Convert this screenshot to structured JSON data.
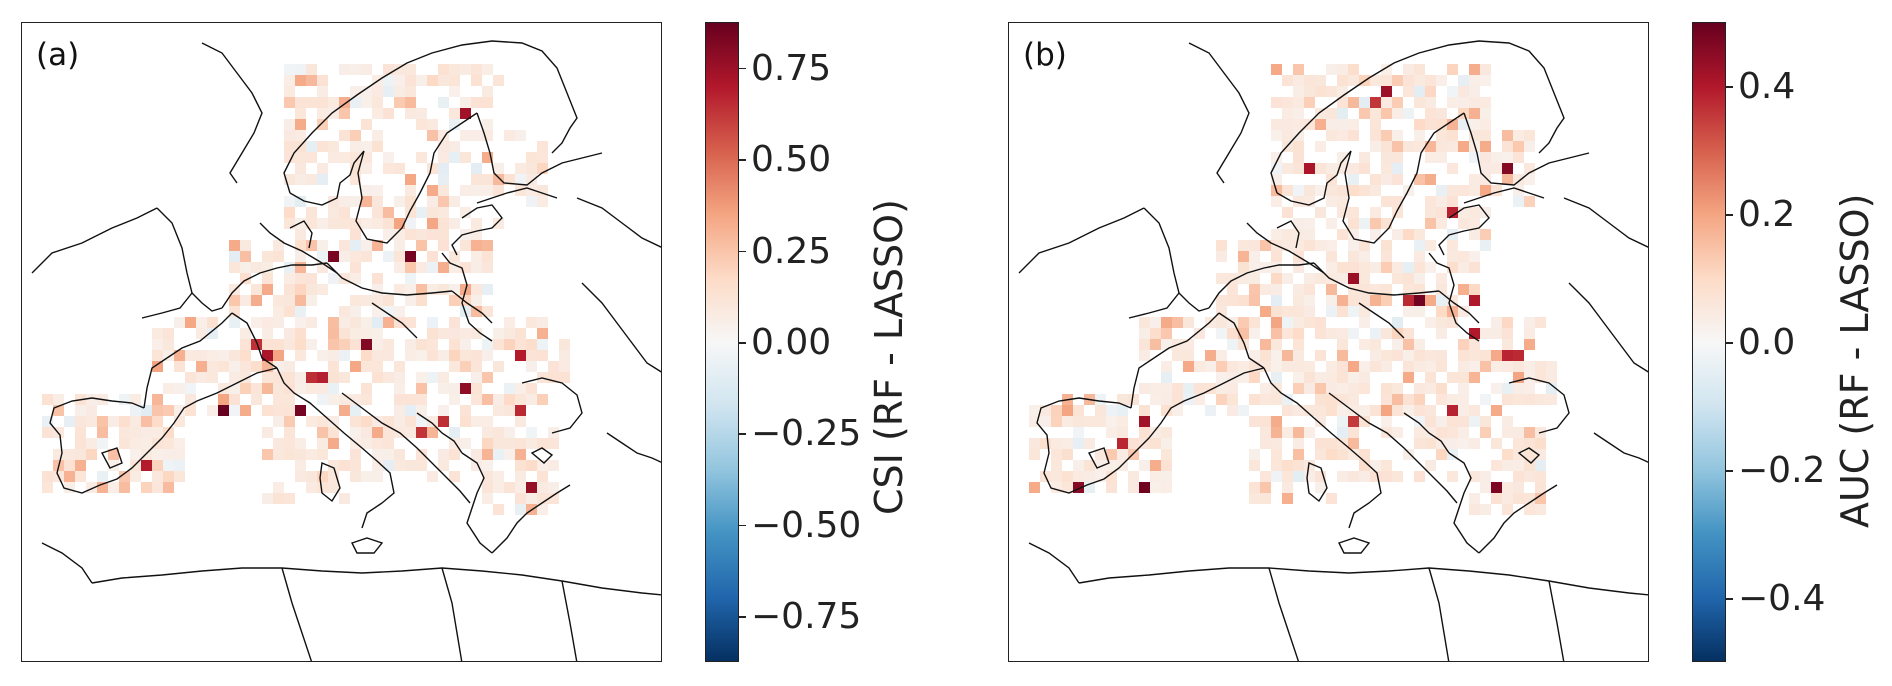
{
  "panels": [
    {
      "label": "(a)",
      "colorbar": {
        "title": "CSI (RF - LASSO)",
        "range": [
          -0.875,
          0.875
        ],
        "ticks": [
          "−0.75",
          "−0.50",
          "−0.25",
          "0.00",
          "0.25",
          "0.50",
          "0.75"
        ],
        "tick_values": [
          -0.75,
          -0.5,
          -0.25,
          0.0,
          0.25,
          0.5,
          0.75
        ],
        "colormap": [
          "#053061",
          "#2166ac",
          "#4393c3",
          "#92c5de",
          "#d1e5f0",
          "#f7f7f7",
          "#fddbc7",
          "#f4a582",
          "#d6604d",
          "#b2182b",
          "#67001f"
        ]
      }
    },
    {
      "label": "(b)",
      "colorbar": {
        "title": "AUC (RF - LASSO)",
        "range": [
          -0.5,
          0.5
        ],
        "ticks": [
          "−0.4",
          "−0.2",
          "0.0",
          "0.2",
          "0.4"
        ],
        "tick_values": [
          -0.4,
          -0.2,
          0.0,
          0.2,
          0.4
        ],
        "colormap": [
          "#053061",
          "#2166ac",
          "#4393c3",
          "#92c5de",
          "#d1e5f0",
          "#f7f7f7",
          "#fddbc7",
          "#f4a582",
          "#d6604d",
          "#b2182b",
          "#67001f"
        ]
      }
    }
  ]
}
